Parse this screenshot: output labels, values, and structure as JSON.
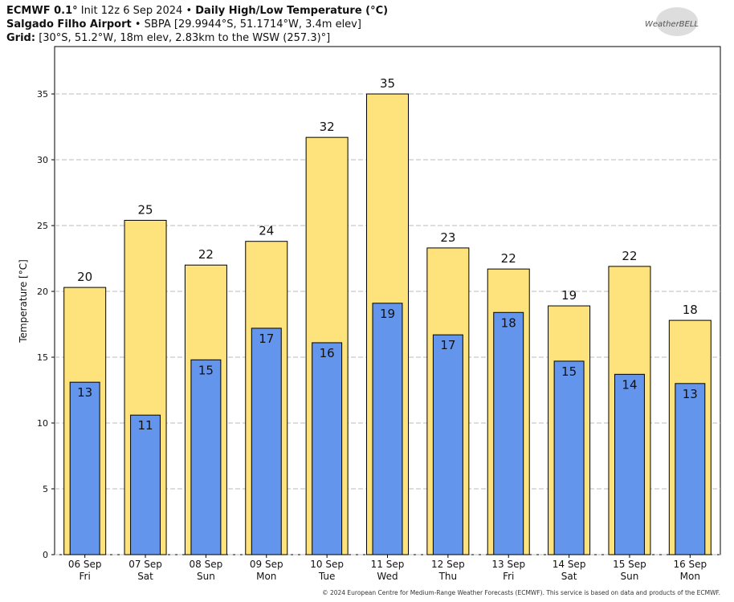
{
  "chart_data": {
    "type": "bar",
    "title": "ECMWF 0.1°",
    "init": "Init 12z 6 Sep 2024 •",
    "product": "Daily High/Low Temperature (°C)",
    "location": "Salgado Filho Airport",
    "station": "• SBPA [29.9944°S, 51.1714°W, 3.4m elev]",
    "grid_label": "Grid:",
    "grid_info": "[30°S, 51.2°W, 18m elev, 2.83km to the WSW (257.3)°]",
    "logo": "WeatherBELL",
    "footer": "© 2024 European Centre for Medium-Range Weather Forecasts (ECMWF). This service is based on data and products of the ECMWF.",
    "y_label": "Temperature [°C]",
    "categories": [
      "06 Sep",
      "07 Sep",
      "08 Sep",
      "09 Sep",
      "10 Sep",
      "11 Sep",
      "12 Sep",
      "13 Sep",
      "14 Sep",
      "15 Sep",
      "16 Sep"
    ],
    "weekdays": [
      "Fri",
      "Sat",
      "Sun",
      "Mon",
      "Tue",
      "Wed",
      "Thu",
      "Fri",
      "Sat",
      "Sun",
      "Mon"
    ],
    "series": [
      {
        "name": "High",
        "color": "#fee27b",
        "values": [
          20.3,
          25.4,
          22.0,
          23.8,
          31.7,
          35.0,
          23.3,
          21.7,
          18.9,
          21.9,
          17.8
        ],
        "value_labels": [
          "20",
          "25",
          "22",
          "24",
          "32",
          "35",
          "23",
          "22",
          "19",
          "22",
          "18"
        ]
      },
      {
        "name": "Low",
        "color": "#6495ed",
        "values": [
          13.1,
          10.6,
          14.8,
          17.2,
          16.1,
          19.1,
          16.7,
          18.4,
          14.7,
          13.7,
          13.0
        ],
        "value_labels": [
          "13",
          "11",
          "15",
          "17",
          "16",
          "19",
          "17",
          "18",
          "15",
          "14",
          "13"
        ]
      }
    ],
    "ylim": [
      0,
      38.6
    ],
    "yticks": [
      0,
      5,
      10,
      15,
      20,
      25,
      30,
      35
    ],
    "grid": true
  }
}
